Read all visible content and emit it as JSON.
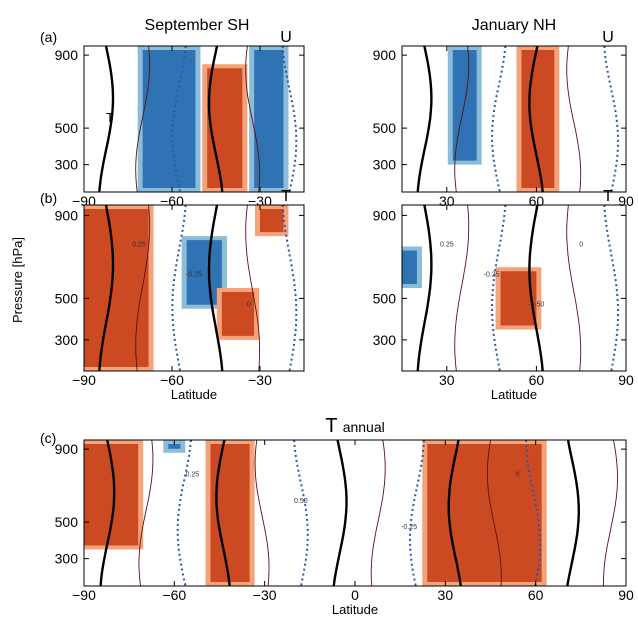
{
  "figure": {
    "ylabel": "Pressure [hPa]",
    "columns": [
      "September  SH",
      "January  NH"
    ],
    "panel_letters": [
      "(a)",
      "(b)",
      "(c)"
    ]
  },
  "colors": {
    "positive_strong": "#cc4a22",
    "positive_weak": "#f4a37a",
    "negative_strong": "#2f73b4",
    "negative_weak": "#8bbcd8",
    "contour_black": "#000000",
    "contour_dark": "#5a1212",
    "contour_negative": "#2b58a8"
  },
  "chart_data": [
    {
      "id": "a-sep-sh",
      "type": "heatmap",
      "panel": "(a)",
      "column_title": "September  SH",
      "corner_label": "U",
      "inner_label": "T",
      "xlabel": "",
      "xlim": [
        -90,
        -15
      ],
      "ylim": [
        950,
        150
      ],
      "xticks": [
        -90,
        -60,
        -30
      ],
      "yticks": [
        300,
        500,
        900
      ],
      "grid": false,
      "regions": [
        {
          "sign": "negative",
          "x": [
            -70,
            -52
          ],
          "y": [
            150,
            950
          ]
        },
        {
          "sign": "positive",
          "x": [
            -48,
            -36
          ],
          "y": [
            150,
            850
          ]
        },
        {
          "sign": "negative",
          "x": [
            -32,
            -22
          ],
          "y": [
            150,
            950
          ]
        }
      ]
    },
    {
      "id": "a-jan-nh",
      "type": "heatmap",
      "panel": "(a)",
      "column_title": "January  NH",
      "corner_label": "U",
      "xlabel": "",
      "xlim": [
        15,
        90
      ],
      "ylim": [
        950,
        150
      ],
      "xticks": [
        30,
        60,
        90
      ],
      "yticks": [
        300,
        500,
        900
      ],
      "grid": false,
      "regions": [
        {
          "sign": "negative",
          "x": [
            32,
            40
          ],
          "y": [
            300,
            950
          ]
        },
        {
          "sign": "positive",
          "x": [
            55,
            66
          ],
          "y": [
            150,
            950
          ]
        }
      ]
    },
    {
      "id": "b-sep-sh",
      "type": "heatmap",
      "panel": "(b)",
      "corner_label": "T",
      "xlabel": "Latitude",
      "xlim": [
        -90,
        -15
      ],
      "ylim": [
        950,
        150
      ],
      "xticks": [
        -90,
        -60,
        -30
      ],
      "yticks": [
        300,
        500,
        900
      ],
      "grid": false,
      "contour_labels": [
        "0.25",
        "-0.25",
        "0"
      ],
      "regions": [
        {
          "sign": "positive",
          "x": [
            -90,
            -68
          ],
          "y": [
            150,
            950
          ]
        },
        {
          "sign": "negative",
          "x": [
            -55,
            -43
          ],
          "y": [
            450,
            800
          ]
        },
        {
          "sign": "positive",
          "x": [
            -43,
            -32
          ],
          "y": [
            300,
            550
          ]
        },
        {
          "sign": "positive",
          "x": [
            -30,
            -22
          ],
          "y": [
            800,
            950
          ]
        }
      ]
    },
    {
      "id": "b-jan-nh",
      "type": "heatmap",
      "panel": "(b)",
      "corner_label": "T",
      "xlabel": "Latitude",
      "xlim": [
        15,
        90
      ],
      "ylim": [
        950,
        150
      ],
      "xticks": [
        30,
        60,
        90
      ],
      "yticks": [
        300,
        500,
        900
      ],
      "grid": false,
      "contour_labels": [
        "0.25",
        "-0.25",
        "-0.50",
        "0"
      ],
      "regions": [
        {
          "sign": "positive",
          "x": [
            48,
            60
          ],
          "y": [
            350,
            650
          ]
        },
        {
          "sign": "negative",
          "x": [
            15,
            20
          ],
          "y": [
            550,
            750
          ]
        }
      ]
    },
    {
      "id": "c-annual",
      "type": "heatmap",
      "panel": "(c)",
      "title": "T annual",
      "xlabel": "Latitude",
      "xlim": [
        -90,
        90
      ],
      "ylim": [
        950,
        150
      ],
      "xticks": [
        -90,
        -60,
        -30,
        0,
        30,
        60,
        90
      ],
      "yticks": [
        300,
        500,
        900
      ],
      "grid": false,
      "contour_labels": [
        "0.25",
        "0.50",
        "-0.25",
        "0"
      ],
      "regions": [
        {
          "sign": "positive",
          "x": [
            -90,
            -72
          ],
          "y": [
            350,
            950
          ]
        },
        {
          "sign": "positive",
          "x": [
            -48,
            -35
          ],
          "y": [
            150,
            950
          ]
        },
        {
          "sign": "negative",
          "x": [
            -62,
            -58
          ],
          "y": [
            880,
            950
          ]
        },
        {
          "sign": "positive",
          "x": [
            24,
            62
          ],
          "y": [
            150,
            950
          ]
        }
      ]
    }
  ]
}
